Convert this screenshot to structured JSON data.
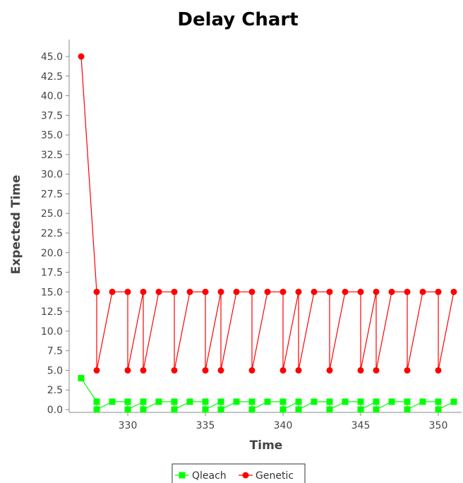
{
  "chart_data": {
    "type": "line",
    "title": "Delay Chart",
    "xlabel": "Time",
    "ylabel": "Expected Time",
    "xlim": [
      326.3,
      351.8
    ],
    "ylim": [
      0,
      45
    ],
    "x_ticks": [
      330,
      335,
      340,
      345,
      350
    ],
    "y_ticks": [
      0.0,
      2.5,
      5.0,
      7.5,
      10.0,
      12.5,
      15.0,
      17.5,
      20.0,
      22.5,
      25.0,
      27.5,
      30.0,
      32.5,
      35.0,
      37.5,
      40.0,
      42.5,
      45.0
    ],
    "grid": false,
    "legend_position": "bottom",
    "series": [
      {
        "name": "Qleach",
        "color": "#00ff00",
        "marker": "square",
        "points": [
          [
            327,
            4
          ],
          [
            328,
            1
          ],
          [
            328,
            0
          ],
          [
            329,
            1
          ],
          [
            330,
            1
          ],
          [
            330,
            0
          ],
          [
            331,
            1
          ],
          [
            331,
            0
          ],
          [
            332,
            1
          ],
          [
            333,
            1
          ],
          [
            333,
            0
          ],
          [
            334,
            1
          ],
          [
            335,
            1
          ],
          [
            335,
            0
          ],
          [
            336,
            1
          ],
          [
            336,
            0
          ],
          [
            337,
            1
          ],
          [
            338,
            1
          ],
          [
            338,
            0
          ],
          [
            339,
            1
          ],
          [
            340,
            1
          ],
          [
            340,
            0
          ],
          [
            341,
            1
          ],
          [
            341,
            0
          ],
          [
            342,
            1
          ],
          [
            343,
            1
          ],
          [
            343,
            0
          ],
          [
            344,
            1
          ],
          [
            345,
            1
          ],
          [
            345,
            0
          ],
          [
            346,
            1
          ],
          [
            346,
            0
          ],
          [
            347,
            1
          ],
          [
            348,
            1
          ],
          [
            348,
            0
          ],
          [
            349,
            1
          ],
          [
            350,
            1
          ],
          [
            350,
            0
          ],
          [
            351,
            1
          ]
        ]
      },
      {
        "name": "Genetic",
        "color": "#ff0000",
        "marker": "circle",
        "points": [
          [
            327,
            45
          ],
          [
            328,
            15
          ],
          [
            328,
            5
          ],
          [
            329,
            15
          ],
          [
            330,
            15
          ],
          [
            330,
            5
          ],
          [
            331,
            15
          ],
          [
            331,
            5
          ],
          [
            332,
            15
          ],
          [
            333,
            15
          ],
          [
            333,
            5
          ],
          [
            334,
            15
          ],
          [
            335,
            15
          ],
          [
            335,
            5
          ],
          [
            336,
            15
          ],
          [
            336,
            5
          ],
          [
            337,
            15
          ],
          [
            338,
            15
          ],
          [
            338,
            5
          ],
          [
            339,
            15
          ],
          [
            340,
            15
          ],
          [
            340,
            5
          ],
          [
            341,
            15
          ],
          [
            341,
            5
          ],
          [
            342,
            15
          ],
          [
            343,
            15
          ],
          [
            343,
            5
          ],
          [
            344,
            15
          ],
          [
            345,
            15
          ],
          [
            345,
            5
          ],
          [
            346,
            15
          ],
          [
            346,
            5
          ],
          [
            347,
            15
          ],
          [
            348,
            15
          ],
          [
            348,
            5
          ],
          [
            349,
            15
          ],
          [
            350,
            15
          ],
          [
            350,
            5
          ],
          [
            351,
            15
          ]
        ]
      }
    ]
  }
}
